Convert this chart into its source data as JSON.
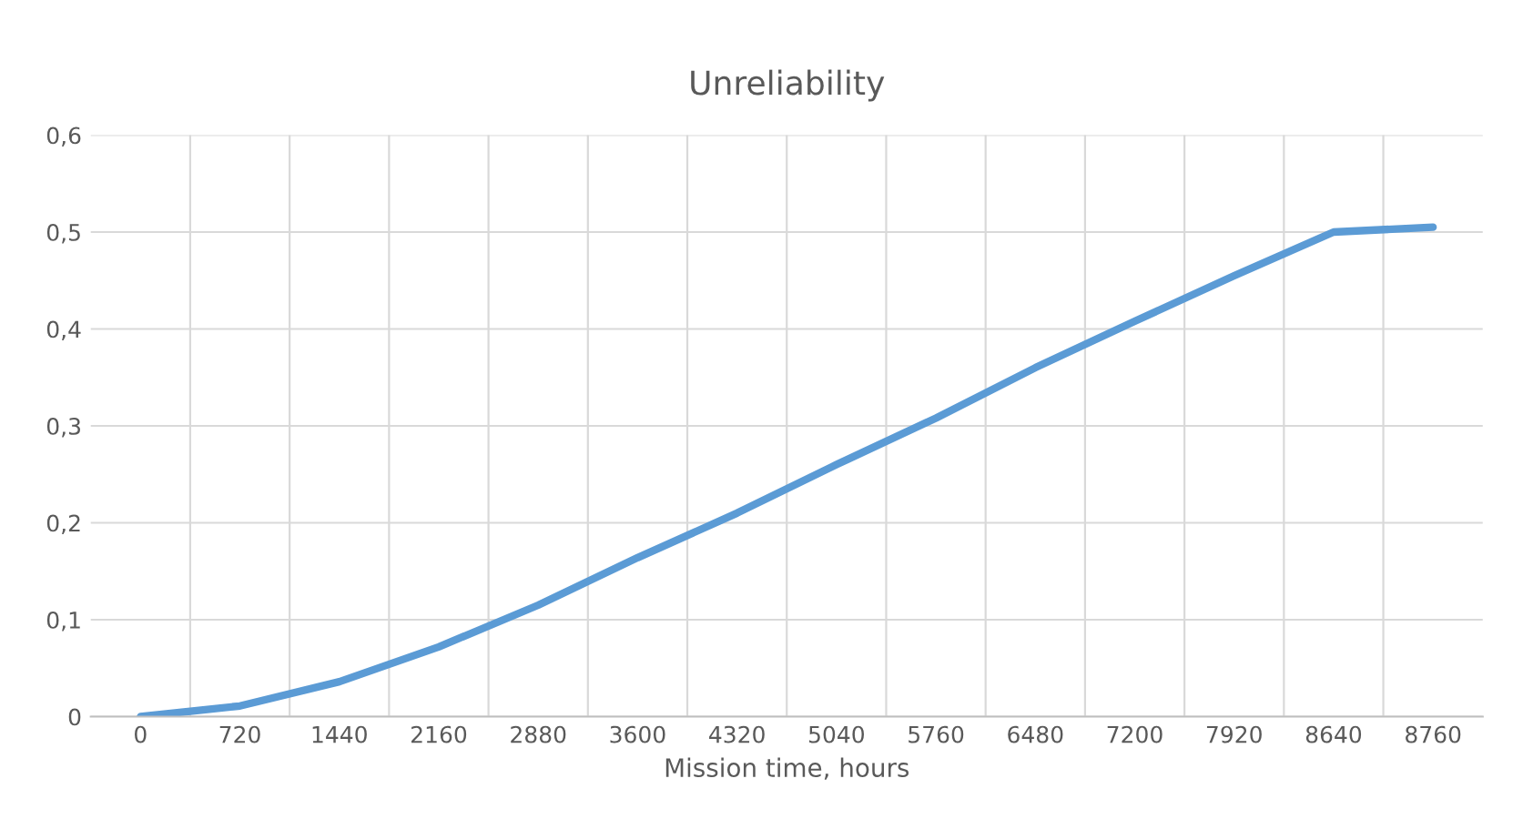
{
  "chart_data": {
    "type": "line",
    "title": "Unreliability",
    "xlabel": "Mission time, hours",
    "categories": [
      "0",
      "720",
      "1440",
      "2160",
      "2880",
      "3600",
      "4320",
      "5040",
      "5760",
      "6480",
      "7200",
      "7920",
      "8640",
      "8760"
    ],
    "series": [
      {
        "color": "#5b9bd5",
        "values": [
          0,
          0.011,
          0.036,
          0.072,
          0.115,
          0.164,
          0.21,
          0.26,
          0.308,
          0.36,
          0.408,
          0.455,
          0.5,
          0.505
        ]
      }
    ],
    "ylim": [
      0,
      0.6
    ],
    "yticks": [
      {
        "value": 0,
        "label": "0"
      },
      {
        "value": 0.1,
        "label": "0,1"
      },
      {
        "value": 0.2,
        "label": "0,2"
      },
      {
        "value": 0.3,
        "label": "0,3"
      },
      {
        "value": 0.4,
        "label": "0,4"
      },
      {
        "value": 0.5,
        "label": "0,5"
      },
      {
        "value": 0.6,
        "label": "0,6"
      }
    ],
    "grid": true,
    "marker": "none",
    "line_style": "solid"
  }
}
